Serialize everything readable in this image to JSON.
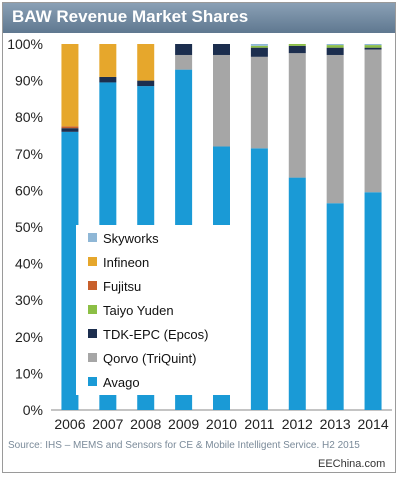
{
  "chart_data": {
    "type": "bar",
    "stacked": true,
    "title": "BAW Revenue Market Shares",
    "xlabel": "",
    "ylabel": "",
    "ylim": [
      0,
      100
    ],
    "yticks": [
      "0%",
      "10%",
      "20%",
      "30%",
      "40%",
      "50%",
      "60%",
      "70%",
      "80%",
      "90%",
      "100%"
    ],
    "categories": [
      "2006",
      "2007",
      "2008",
      "2009",
      "2010",
      "2011",
      "2012",
      "2013",
      "2014"
    ],
    "series": [
      {
        "name": "Avago",
        "color": "#1a9ad6",
        "values": [
          76,
          89.5,
          88.5,
          93,
          72,
          71.5,
          63.5,
          56.5,
          59.5
        ]
      },
      {
        "name": "Qorvo (TriQuint)",
        "color": "#a6a6a6",
        "values": [
          0,
          0,
          0,
          4,
          25,
          25,
          34,
          40.5,
          39
        ]
      },
      {
        "name": "TDK-EPC (Epcos)",
        "color": "#1c2e4e",
        "values": [
          1,
          1.5,
          1.5,
          3,
          3,
          2.5,
          2,
          2,
          0.5
        ]
      },
      {
        "name": "Taiyo Yuden",
        "color": "#8cbf45",
        "values": [
          0,
          0,
          0,
          0,
          0,
          0.5,
          0.5,
          0.7,
          0.7
        ]
      },
      {
        "name": "Fujitsu",
        "color": "#c8602c",
        "values": [
          0.5,
          0,
          0,
          0,
          0,
          0,
          0,
          0,
          0
        ]
      },
      {
        "name": "Infineon",
        "color": "#e6a72c",
        "values": [
          22.5,
          9,
          10,
          0,
          0,
          0,
          0,
          0,
          0
        ]
      },
      {
        "name": "Skyworks",
        "color": "#8fb7d6",
        "values": [
          0,
          0,
          0,
          0,
          0,
          0.5,
          0,
          0.3,
          0.3
        ]
      }
    ],
    "legend_order": [
      "Skyworks",
      "Infineon",
      "Fujitsu",
      "Taiyo Yuden",
      "TDK-EPC (Epcos)",
      "Qorvo (TriQuint)",
      "Avago"
    ],
    "legend_position": "inside-left",
    "grid": false
  },
  "source_text": "Source: IHS – MEMS and  Sensors for CE & Mobile Intelligent Service. H2 2015",
  "watermark": "EEChina.com"
}
